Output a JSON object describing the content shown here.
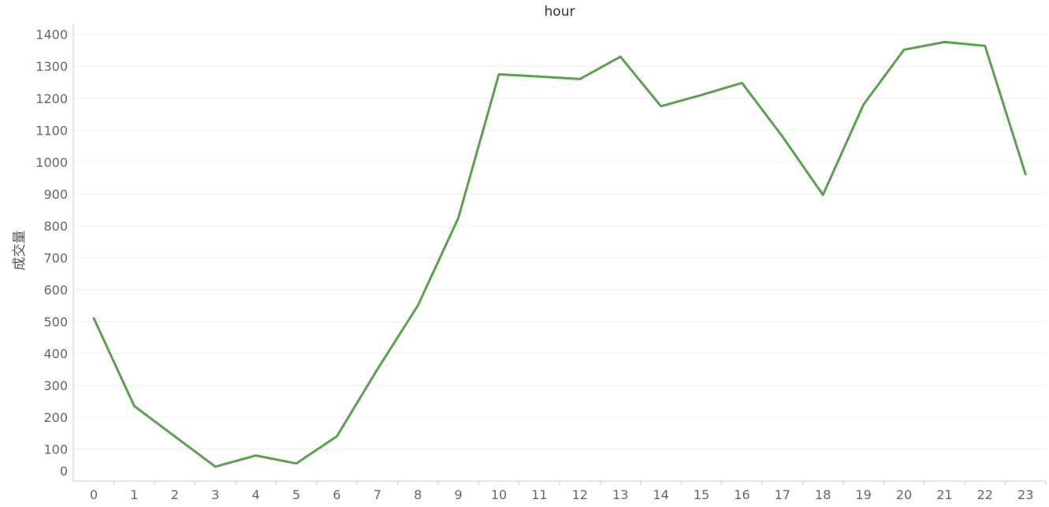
{
  "chart_data": {
    "type": "line",
    "title": "hour",
    "xlabel": "",
    "ylabel": "成交量",
    "x": [
      0,
      1,
      2,
      3,
      4,
      5,
      6,
      7,
      8,
      9,
      10,
      11,
      12,
      13,
      14,
      15,
      16,
      17,
      18,
      19,
      20,
      21,
      22,
      23
    ],
    "x_tick_labels": [
      "0",
      "1",
      "2",
      "3",
      "4",
      "5",
      "6",
      "7",
      "8",
      "9",
      "10",
      "11",
      "12",
      "13",
      "14",
      "15",
      "16",
      "17",
      "18",
      "19",
      "20",
      "21",
      "22",
      "23"
    ],
    "y_ticks": [
      0,
      100,
      200,
      300,
      400,
      500,
      600,
      700,
      800,
      900,
      1000,
      1100,
      1200,
      1300,
      1400
    ],
    "y_tick_labels": [
      "0",
      "100",
      "200",
      "300",
      "400",
      "500",
      "600",
      "700",
      "800",
      "900",
      "1000",
      "1100",
      "1200",
      "1300",
      "1400"
    ],
    "ylim": [
      0,
      1420
    ],
    "grid": true,
    "series": [
      {
        "values": [
          510,
          235,
          140,
          45,
          80,
          55,
          140,
          350,
          550,
          825,
          1275,
          1268,
          1260,
          1330,
          1175,
          1210,
          1248,
          1080,
          897,
          1180,
          1352,
          1376,
          1364,
          962
        ],
        "color": "#59a14f"
      }
    ]
  }
}
